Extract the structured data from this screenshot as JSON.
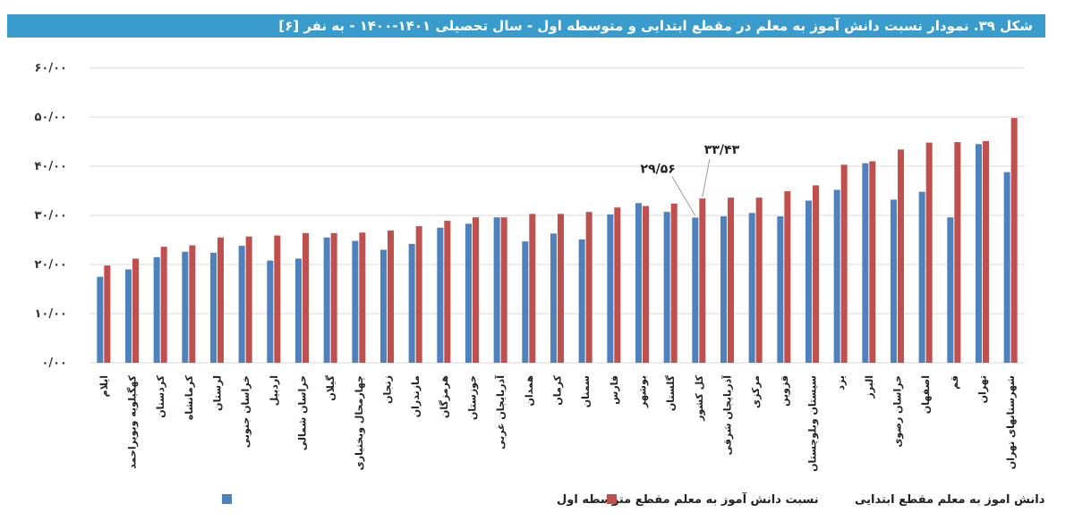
{
  "chart_data": {
    "type": "bar",
    "title": "شکل ۳۹. نمودار نسبت دانش آموز به معلم در مقطع ابتدایی و متوسطه اول - سال تحصیلی ۱۴۰۱-۱۴۰۰ - به نفر [۶]",
    "xlabel": "",
    "ylabel": "",
    "ylim": [
      0,
      60
    ],
    "grid": true,
    "legend_position": "bottom",
    "y_ticks": [
      0,
      10,
      20,
      30,
      40,
      50,
      60
    ],
    "y_tick_labels": [
      "۰/۰۰",
      "۱۰/۰۰",
      "۲۰/۰۰",
      "۳۰/۰۰",
      "۴۰/۰۰",
      "۵۰/۰۰",
      "۶۰/۰۰"
    ],
    "categories": [
      "ایلام",
      "کهگیلویه وبویراحمد",
      "کردستان",
      "کرمانشاه",
      "لرستان",
      "خراسان جنوبی",
      "اردبیل",
      "خراسان شمالی",
      "گیلان",
      "چهارمحال وبختیاری",
      "زنجان",
      "مازندران",
      "هرمزگان",
      "خوزستان",
      "آذربایجان غربی",
      "همدان",
      "کرمان",
      "سمنان",
      "فارس",
      "بوشهر",
      "گلستان",
      "کل کشور",
      "آذربایجان شرقی",
      "مرکزی",
      "قزوین",
      "سیستان وبلوچستان",
      "یزد",
      "البرز",
      "خراسان رضوی",
      "اصفهان",
      "قم",
      "تهران",
      "شهرستانهای تهران"
    ],
    "series": [
      {
        "name": "نسبت دانش آموز به معلم مقطع متوسطه اول",
        "color": "#4f81bd",
        "values": [
          17.5,
          19.0,
          21.5,
          22.6,
          22.4,
          23.8,
          20.8,
          21.2,
          25.5,
          24.8,
          23.0,
          24.2,
          27.5,
          28.3,
          29.6,
          24.7,
          26.3,
          25.1,
          30.2,
          32.5,
          30.7,
          29.56,
          29.8,
          30.5,
          29.8,
          33.0,
          35.2,
          40.6,
          33.2,
          34.8,
          29.6,
          44.5,
          38.8
        ]
      },
      {
        "name": "دانش اموز به معلم مقطع ابتدایی",
        "color": "#c0504d",
        "values": [
          19.8,
          21.2,
          23.6,
          23.9,
          25.5,
          25.7,
          25.9,
          26.4,
          26.4,
          26.5,
          26.9,
          27.8,
          28.9,
          29.6,
          29.6,
          30.3,
          30.3,
          30.7,
          31.6,
          31.9,
          32.4,
          33.43,
          33.6,
          33.6,
          34.9,
          36.1,
          40.3,
          41.0,
          43.4,
          44.8,
          44.9,
          45.1,
          49.8
        ]
      }
    ],
    "annotations": [
      {
        "text": "۲۹/۵۶",
        "category": "کل کشور",
        "series": 0
      },
      {
        "text": "۳۳/۴۳",
        "category": "کل کشور",
        "series": 1
      }
    ]
  }
}
